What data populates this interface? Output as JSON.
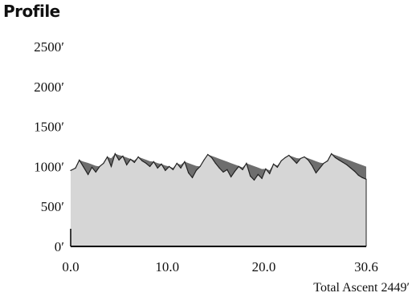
{
  "title": "Profile",
  "footer_note": "Total Ascent 2449′",
  "colors": {
    "fill": "#d6d6d6",
    "ascent_shading": "#6e6e6e",
    "line": "#222222",
    "axis": "#000000"
  },
  "chart_data": {
    "type": "area",
    "title": "Profile",
    "xlabel": "",
    "ylabel": "",
    "xlim": [
      0,
      30.6
    ],
    "ylim": [
      0,
      2500
    ],
    "x_ticks": [
      {
        "value": 0,
        "label": "0.0"
      },
      {
        "value": 10,
        "label": "10.0"
      },
      {
        "value": 20,
        "label": "20.0"
      },
      {
        "value": 30.6,
        "label": "30.6"
      }
    ],
    "y_ticks": [
      {
        "value": 0,
        "label": "0′"
      },
      {
        "value": 500,
        "label": "500′"
      },
      {
        "value": 1000,
        "label": "1000′"
      },
      {
        "value": 1500,
        "label": "1500′"
      },
      {
        "value": 2000,
        "label": "2000′"
      },
      {
        "value": 2500,
        "label": "2500′"
      }
    ],
    "grid": false,
    "annotations": [
      "Total Ascent 2449′"
    ],
    "series": [
      {
        "x": [
          0.0,
          0.5,
          0.9,
          1.3,
          1.8,
          2.2,
          2.6,
          3.0,
          3.4,
          3.8,
          4.2,
          4.6,
          5.0,
          5.4,
          5.8,
          6.2,
          6.6,
          7.0,
          7.4,
          7.8,
          8.2,
          8.6,
          9.0,
          9.4,
          9.8,
          10.2,
          10.6,
          11.0,
          11.4,
          11.8,
          12.2,
          12.6,
          13.0,
          13.4,
          13.8,
          14.2,
          14.6,
          15.0,
          15.4,
          15.8,
          16.2,
          16.6,
          17.0,
          17.4,
          17.8,
          18.2,
          18.6,
          19.0,
          19.4,
          19.8,
          20.2,
          20.6,
          21.0,
          21.4,
          21.8,
          22.2,
          22.6,
          23.0,
          23.4,
          23.8,
          24.2,
          24.6,
          25.0,
          25.4,
          25.8,
          26.2,
          26.6,
          27.0,
          27.4,
          27.8,
          28.2,
          28.6,
          29.0,
          29.4,
          29.8,
          30.2,
          30.6
        ],
        "y": [
          950,
          980,
          1080,
          1000,
          900,
          990,
          930,
          1000,
          1040,
          1120,
          1000,
          1160,
          1080,
          1130,
          1020,
          1090,
          1050,
          1120,
          1070,
          1040,
          1000,
          1060,
          980,
          1030,
          950,
          1000,
          960,
          1040,
          980,
          1060,
          920,
          860,
          950,
          1000,
          1080,
          1150,
          1110,
          1040,
          980,
          930,
          960,
          870,
          940,
          1000,
          960,
          1040,
          880,
          830,
          900,
          850,
          970,
          910,
          1030,
          990,
          1070,
          1110,
          1140,
          1090,
          1040,
          1100,
          1120,
          1080,
          1010,
          920,
          980,
          1040,
          1070,
          1160,
          1110,
          1080,
          1050,
          1020,
          980,
          940,
          890,
          860,
          840
        ]
      }
    ]
  }
}
